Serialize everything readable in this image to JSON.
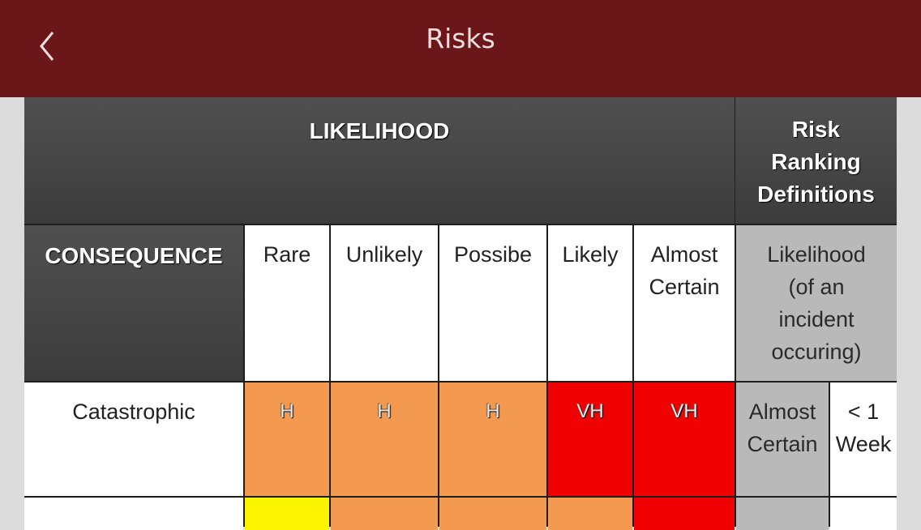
{
  "nav": {
    "title": "Risks"
  },
  "matrix": {
    "likelihood_header": "LIKELIHOOD",
    "risk_ranking_header": [
      "Risk",
      "Ranking",
      "Definitions"
    ],
    "consequence_header": "CONSEQUENCE",
    "columns": [
      [
        "Rare"
      ],
      [
        "Unlikely"
      ],
      [
        "Possibe"
      ],
      [
        "Likely"
      ],
      [
        "Almost",
        "Certain"
      ]
    ],
    "likelihood_definition": [
      "Likelihood",
      "(of an",
      "incident",
      "occuring)"
    ],
    "rows": [
      {
        "label": "Catastrophic",
        "cells": [
          "H",
          "H",
          "H",
          "VH",
          "VH"
        ],
        "definition_label": [
          "Almost",
          "Certain"
        ],
        "definition_value": [
          "< 1",
          "Week"
        ]
      }
    ]
  },
  "colors": {
    "nav_background": "#6b1618",
    "high": "#f39a50",
    "very_high": "#f00000",
    "medium": "#fbf400"
  }
}
